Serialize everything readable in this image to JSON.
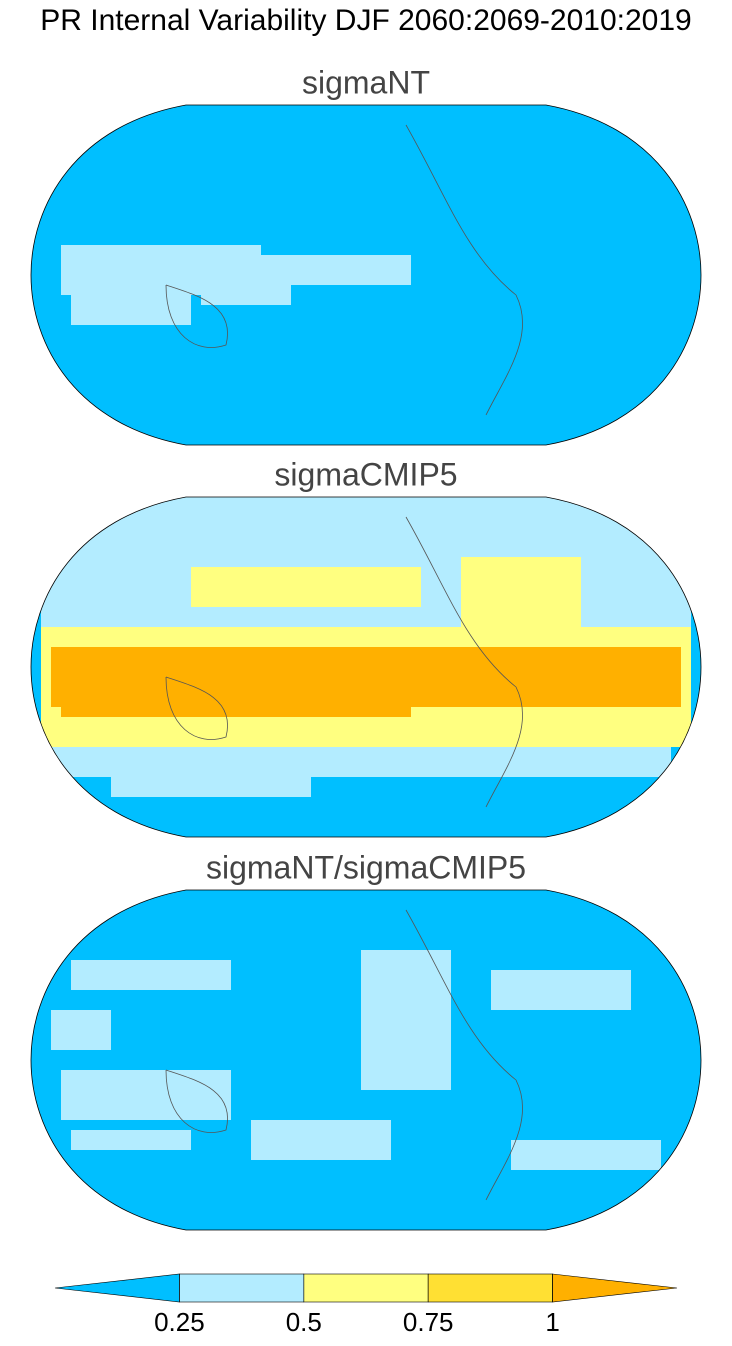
{
  "title": "PR Internal Variability DJF 2060:2069-2010:2019",
  "panels": [
    {
      "title": "sigmaNT"
    },
    {
      "title": "sigmaCMIP5"
    },
    {
      "title": "sigmaNT/sigmaCMIP5"
    }
  ],
  "colorbar": {
    "levels": [
      0.25,
      0.5,
      0.75,
      1
    ],
    "colors": [
      "#00bfff",
      "#b3ecff",
      "#ffff80",
      "#ffe033",
      "#ffb000"
    ]
  }
}
